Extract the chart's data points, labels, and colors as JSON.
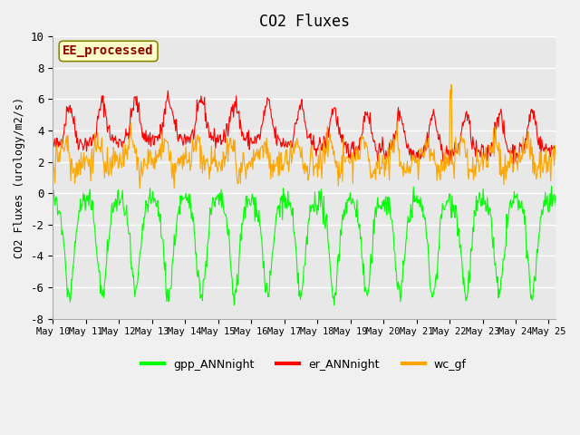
{
  "title": "CO2 Fluxes",
  "ylabel": "CO2 Fluxes (urology/m2/s)",
  "ylim": [
    -8,
    10
  ],
  "yticks": [
    -8,
    -6,
    -4,
    -2,
    0,
    2,
    4,
    6,
    8,
    10
  ],
  "background_color": "#f0f0f0",
  "plot_bg_color": "#e8e8e8",
  "annotation_text": "EE_processed",
  "annotation_color": "#8b0000",
  "annotation_bg": "#ffffcc",
  "line_colors": {
    "gpp_ANNnight": "#00ff00",
    "er_ANNnight": "#ff0000",
    "wc_gf": "#ffa500"
  },
  "legend_labels": [
    "gpp_ANNnight",
    "er_ANNnight",
    "wc_gf"
  ],
  "n_days": 16,
  "start_day": 10,
  "end_day": 25,
  "x_tick_labels": [
    "May 10",
    "May 11",
    "May 12",
    "May 13",
    "May 14",
    "May 15",
    "May 16",
    "May 17",
    "May 18",
    "May 19",
    "May 20",
    "May 21",
    "May 22",
    "May 23",
    "May 24",
    "May 25"
  ]
}
